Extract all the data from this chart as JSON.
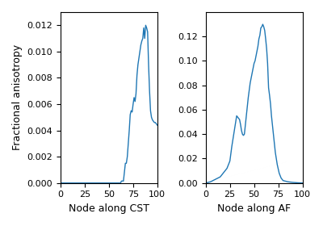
{
  "line_color": "#1f77b4",
  "line_width": 1.0,
  "figsize": [
    4.0,
    2.8
  ],
  "dpi": 100,
  "left_xlabel": "Node along CST",
  "left_ylabel": "Fractional anisotropy",
  "right_xlabel": "Node along AF",
  "right_ylabel": "",
  "left_ylim": [
    0,
    0.013
  ],
  "right_ylim": [
    0,
    0.14
  ],
  "xlim": [
    0,
    100
  ],
  "left_yticks": [
    0.0,
    0.002,
    0.004,
    0.006,
    0.008,
    0.01,
    0.012
  ],
  "right_yticks": [
    0.0,
    0.02,
    0.04,
    0.06,
    0.08,
    0.1,
    0.12
  ],
  "xticks": [
    0,
    25,
    50,
    75,
    100
  ],
  "cst_x": [
    0,
    62,
    63,
    65,
    67,
    68,
    69,
    70,
    71,
    72,
    73,
    74,
    75,
    76,
    77,
    78,
    79,
    80,
    81,
    82,
    83,
    84,
    85,
    86,
    87,
    88,
    89,
    90,
    91,
    92,
    93,
    94,
    95,
    96,
    97,
    98,
    99,
    100
  ],
  "cst_y": [
    0.0,
    0.0,
    0.00015,
    0.00015,
    0.0015,
    0.0015,
    0.002,
    0.003,
    0.004,
    0.0052,
    0.0055,
    0.0054,
    0.006,
    0.0065,
    0.0062,
    0.0068,
    0.0082,
    0.009,
    0.0095,
    0.01,
    0.0105,
    0.0108,
    0.011,
    0.0118,
    0.011,
    0.012,
    0.0118,
    0.0115,
    0.009,
    0.007,
    0.0055,
    0.005,
    0.0048,
    0.0047,
    0.0046,
    0.0046,
    0.0045,
    0.0044
  ],
  "af_x": [
    0,
    5,
    10,
    15,
    20,
    22,
    25,
    27,
    30,
    32,
    33,
    34,
    35,
    36,
    37,
    38,
    39,
    40,
    42,
    44,
    46,
    48,
    50,
    51,
    52,
    53,
    54,
    55,
    56,
    57,
    58,
    59,
    60,
    61,
    62,
    63,
    64,
    65,
    66,
    67,
    68,
    70,
    72,
    74,
    76,
    78,
    80,
    85,
    90,
    95,
    100
  ],
  "af_y": [
    0.0,
    0.001,
    0.003,
    0.005,
    0.01,
    0.012,
    0.018,
    0.03,
    0.045,
    0.055,
    0.054,
    0.053,
    0.052,
    0.048,
    0.043,
    0.04,
    0.039,
    0.04,
    0.055,
    0.07,
    0.082,
    0.09,
    0.098,
    0.1,
    0.104,
    0.108,
    0.112,
    0.118,
    0.121,
    0.127,
    0.128,
    0.13,
    0.128,
    0.125,
    0.118,
    0.11,
    0.098,
    0.078,
    0.072,
    0.065,
    0.055,
    0.04,
    0.025,
    0.015,
    0.008,
    0.004,
    0.002,
    0.001,
    0.0005,
    0.0002,
    0.0
  ]
}
